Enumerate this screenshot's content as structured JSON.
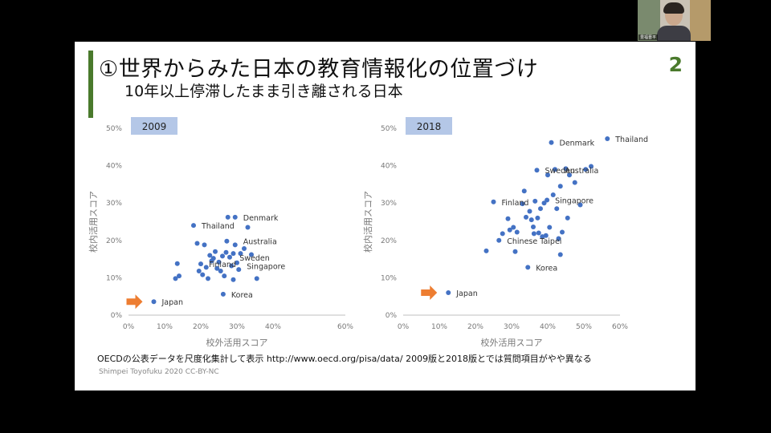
{
  "slide": {
    "title": "①世界からみた日本の教育情報化の位置づけ",
    "subtitle": "10年以上停滞したまま引き離される日本",
    "page_number": "2",
    "footnote": "OECDの公表データを尺度化集計して表示 http://www.oecd.org/pisa/data/ 2009版と2018版とでは質問項目がやや異なる",
    "credit": "Shimpei Toyofuku 2020 CC-BY-NC",
    "accent_color": "#4a7a2c",
    "webcam_name": "豊福晋平"
  },
  "chart_data": [
    {
      "type": "scatter",
      "title": "2009",
      "xlabel": "校外活用スコア",
      "ylabel": "校内活用スコア",
      "xlim": [
        0,
        0.6
      ],
      "ylim": [
        0,
        0.5
      ],
      "xticks": [
        "0%",
        "10%",
        "20%",
        "30%",
        "40%",
        "60%"
      ],
      "yticks": [
        "0%",
        "10%",
        "20%",
        "30%",
        "40%",
        "50%"
      ],
      "grid": false,
      "marker_color": "#4472c4",
      "highlight_arrow_color": "#ed7d31",
      "points": [
        [
          0.07,
          0.036
        ],
        [
          0.13,
          0.098
        ],
        [
          0.14,
          0.105
        ],
        [
          0.135,
          0.138
        ],
        [
          0.18,
          0.24
        ],
        [
          0.19,
          0.192
        ],
        [
          0.195,
          0.118
        ],
        [
          0.2,
          0.137
        ],
        [
          0.205,
          0.108
        ],
        [
          0.21,
          0.188
        ],
        [
          0.215,
          0.128
        ],
        [
          0.22,
          0.098
        ],
        [
          0.225,
          0.16
        ],
        [
          0.23,
          0.145
        ],
        [
          0.235,
          0.152
        ],
        [
          0.24,
          0.17
        ],
        [
          0.245,
          0.125
        ],
        [
          0.25,
          0.142
        ],
        [
          0.255,
          0.118
        ],
        [
          0.26,
          0.158
        ],
        [
          0.262,
          0.056
        ],
        [
          0.265,
          0.105
        ],
        [
          0.27,
          0.168
        ],
        [
          0.272,
          0.198
        ],
        [
          0.275,
          0.262
        ],
        [
          0.28,
          0.155
        ],
        [
          0.285,
          0.132
        ],
        [
          0.29,
          0.165
        ],
        [
          0.29,
          0.095
        ],
        [
          0.295,
          0.262
        ],
        [
          0.295,
          0.188
        ],
        [
          0.3,
          0.14
        ],
        [
          0.305,
          0.122
        ],
        [
          0.31,
          0.165
        ],
        [
          0.32,
          0.178
        ],
        [
          0.33,
          0.235
        ],
        [
          0.34,
          0.162
        ],
        [
          0.355,
          0.098
        ]
      ],
      "labels": [
        {
          "text": "Japan",
          "x": 0.07,
          "y": 0.036
        },
        {
          "text": "Korea",
          "x": 0.262,
          "y": 0.056
        },
        {
          "text": "Finland",
          "x": 0.2,
          "y": 0.137
        },
        {
          "text": "Sweden",
          "x": 0.285,
          "y": 0.155
        },
        {
          "text": "Singapore",
          "x": 0.305,
          "y": 0.132
        },
        {
          "text": "Australia",
          "x": 0.295,
          "y": 0.198
        },
        {
          "text": "Thailand",
          "x": 0.18,
          "y": 0.24
        },
        {
          "text": "Denmark",
          "x": 0.295,
          "y": 0.262
        }
      ]
    },
    {
      "type": "scatter",
      "title": "2018",
      "xlabel": "校外活用スコア",
      "ylabel": "校内活用スコア",
      "xlim": [
        0,
        0.6
      ],
      "ylim": [
        0,
        0.5
      ],
      "xticks": [
        "0%",
        "10%",
        "20%",
        "30%",
        "40%",
        "50%",
        "60%"
      ],
      "yticks": [
        "0%",
        "10%",
        "20%",
        "30%",
        "40%",
        "50%"
      ],
      "grid": false,
      "marker_color": "#4472c4",
      "highlight_arrow_color": "#ed7d31",
      "points": [
        [
          0.125,
          0.06
        ],
        [
          0.23,
          0.172
        ],
        [
          0.25,
          0.303
        ],
        [
          0.265,
          0.2
        ],
        [
          0.275,
          0.218
        ],
        [
          0.29,
          0.258
        ],
        [
          0.295,
          0.228
        ],
        [
          0.305,
          0.235
        ],
        [
          0.31,
          0.17
        ],
        [
          0.315,
          0.222
        ],
        [
          0.33,
          0.298
        ],
        [
          0.335,
          0.332
        ],
        [
          0.34,
          0.262
        ],
        [
          0.345,
          0.128
        ],
        [
          0.35,
          0.278
        ],
        [
          0.355,
          0.255
        ],
        [
          0.36,
          0.236
        ],
        [
          0.362,
          0.218
        ],
        [
          0.365,
          0.305
        ],
        [
          0.37,
          0.388
        ],
        [
          0.372,
          0.26
        ],
        [
          0.375,
          0.22
        ],
        [
          0.38,
          0.285
        ],
        [
          0.385,
          0.21
        ],
        [
          0.39,
          0.3
        ],
        [
          0.395,
          0.213
        ],
        [
          0.398,
          0.308
        ],
        [
          0.4,
          0.375
        ],
        [
          0.405,
          0.235
        ],
        [
          0.41,
          0.462
        ],
        [
          0.415,
          0.322
        ],
        [
          0.42,
          0.39
        ],
        [
          0.425,
          0.285
        ],
        [
          0.43,
          0.205
        ],
        [
          0.435,
          0.345
        ],
        [
          0.435,
          0.162
        ],
        [
          0.44,
          0.222
        ],
        [
          0.45,
          0.392
        ],
        [
          0.455,
          0.26
        ],
        [
          0.46,
          0.375
        ],
        [
          0.475,
          0.355
        ],
        [
          0.49,
          0.295
        ],
        [
          0.505,
          0.39
        ],
        [
          0.52,
          0.398
        ],
        [
          0.565,
          0.472
        ]
      ],
      "labels": [
        {
          "text": "Japan",
          "x": 0.125,
          "y": 0.06
        },
        {
          "text": "Korea",
          "x": 0.345,
          "y": 0.128
        },
        {
          "text": "Chinese Taipei",
          "x": 0.265,
          "y": 0.2
        },
        {
          "text": "Finland",
          "x": 0.25,
          "y": 0.303
        },
        {
          "text": "Singapore",
          "x": 0.398,
          "y": 0.308
        },
        {
          "text": "Sweden",
          "x": 0.37,
          "y": 0.388
        },
        {
          "text": "Australia",
          "x": 0.425,
          "y": 0.388
        },
        {
          "text": "Denmark",
          "x": 0.41,
          "y": 0.462
        },
        {
          "text": "Thailand",
          "x": 0.565,
          "y": 0.472
        }
      ]
    }
  ]
}
